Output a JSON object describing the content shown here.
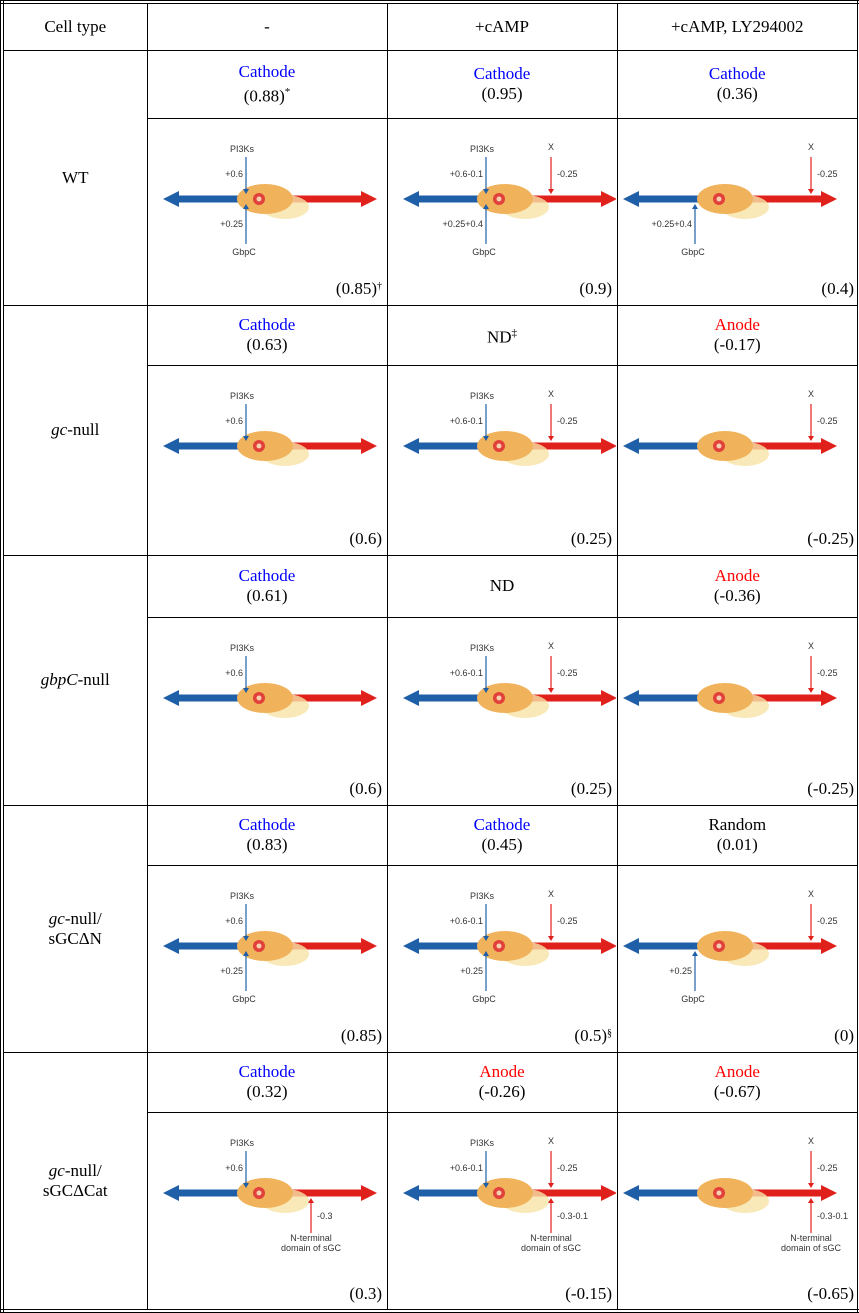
{
  "header": [
    "Cell type",
    "-",
    "+cAMP",
    "+cAMP, LY294002"
  ],
  "rows": [
    {
      "cell_type": {
        "lines": [
          [
            {
              "text": "WT",
              "italic": false
            }
          ]
        ]
      },
      "results": [
        {
          "direction": "Cathode",
          "color": "#0000ff",
          "value": "(0.88)",
          "mark": "*"
        },
        {
          "direction": "Cathode",
          "color": "#0000ff",
          "value": "(0.95)"
        },
        {
          "direction": "Cathode",
          "color": "#0000ff",
          "value": "(0.36)"
        }
      ],
      "diagrams": [
        {
          "pi3k": {
            "label": "PI3Ks",
            "value": "+0.6"
          },
          "gbpc": {
            "label": "GbpC",
            "value": "+0.25"
          },
          "score": "(0.85)",
          "score_mark": "†"
        },
        {
          "pi3k": {
            "label": "PI3Ks",
            "value": "+0.6-0.1"
          },
          "gbpc": {
            "label": "GbpC",
            "value": "+0.25+0.4"
          },
          "x": {
            "label": "X",
            "value": "-0.25"
          },
          "score": "(0.9)"
        },
        {
          "gbpc": {
            "label": "GbpC",
            "value": "+0.25+0.4"
          },
          "x": {
            "label": "X",
            "value": "-0.25"
          },
          "score": "(0.4)"
        }
      ]
    },
    {
      "cell_type": {
        "lines": [
          [
            {
              "text": "gc",
              "italic": true
            },
            {
              "text": "-null",
              "italic": false
            }
          ]
        ]
      },
      "results": [
        {
          "direction": "Cathode",
          "color": "#0000ff",
          "value": "(0.63)"
        },
        {
          "direction": "ND",
          "color": "#000000",
          "direction_mark": "‡"
        },
        {
          "direction": "Anode",
          "color": "#ff0000",
          "value": "(-0.17)"
        }
      ],
      "diagrams": [
        {
          "pi3k": {
            "label": "PI3Ks",
            "value": "+0.6"
          },
          "score": "(0.6)"
        },
        {
          "pi3k": {
            "label": "PI3Ks",
            "value": "+0.6-0.1"
          },
          "x": {
            "label": "X",
            "value": "-0.25"
          },
          "score": "(0.25)"
        },
        {
          "x": {
            "label": "X",
            "value": "-0.25"
          },
          "score": "(-0.25)"
        }
      ]
    },
    {
      "cell_type": {
        "lines": [
          [
            {
              "text": "gbpC",
              "italic": true
            },
            {
              "text": "-null",
              "italic": false
            }
          ]
        ]
      },
      "results": [
        {
          "direction": "Cathode",
          "color": "#0000ff",
          "value": "(0.61)"
        },
        {
          "direction": "ND",
          "color": "#000000"
        },
        {
          "direction": "Anode",
          "color": "#ff0000",
          "value": "(-0.36)"
        }
      ],
      "diagrams": [
        {
          "pi3k": {
            "label": "PI3Ks",
            "value": "+0.6"
          },
          "score": "(0.6)"
        },
        {
          "pi3k": {
            "label": "PI3Ks",
            "value": "+0.6-0.1"
          },
          "x": {
            "label": "X",
            "value": "-0.25"
          },
          "score": "(0.25)"
        },
        {
          "x": {
            "label": "X",
            "value": "-0.25"
          },
          "score": "(-0.25)"
        }
      ]
    },
    {
      "cell_type": {
        "lines": [
          [
            {
              "text": "gc",
              "italic": true
            },
            {
              "text": "-null/",
              "italic": false
            }
          ],
          [
            {
              "text": "sGCΔN",
              "italic": false
            }
          ]
        ]
      },
      "results": [
        {
          "direction": "Cathode",
          "color": "#0000ff",
          "value": "(0.83)"
        },
        {
          "direction": "Cathode",
          "color": "#0000ff",
          "value": "(0.45)"
        },
        {
          "direction": "Random",
          "color": "#000000",
          "value": "(0.01)"
        }
      ],
      "diagrams": [
        {
          "pi3k": {
            "label": "PI3Ks",
            "value": "+0.6"
          },
          "gbpc": {
            "label": "GbpC",
            "value": "+0.25"
          },
          "score": "(0.85)"
        },
        {
          "pi3k": {
            "label": "PI3Ks",
            "value": "+0.6-0.1"
          },
          "gbpc": {
            "label": "GbpC",
            "value": "+0.25"
          },
          "x": {
            "label": "X",
            "value": "-0.25"
          },
          "score": "(0.5)",
          "score_mark": "§"
        },
        {
          "gbpc": {
            "label": "GbpC",
            "value": "+0.25"
          },
          "x": {
            "label": "X",
            "value": "-0.25"
          },
          "score": "(0)"
        }
      ]
    },
    {
      "cell_type": {
        "lines": [
          [
            {
              "text": "gc",
              "italic": true
            },
            {
              "text": "-null/",
              "italic": false
            }
          ],
          [
            {
              "text": "sGCΔCat",
              "italic": false
            }
          ]
        ]
      },
      "results": [
        {
          "direction": "Cathode",
          "color": "#0000ff",
          "value": "(0.32)"
        },
        {
          "direction": "Anode",
          "color": "#ff0000",
          "value": "(-0.26)"
        },
        {
          "direction": "Anode",
          "color": "#ff0000",
          "value": "(-0.67)"
        }
      ],
      "diagrams": [
        {
          "pi3k": {
            "label": "PI3Ks",
            "value": "+0.6"
          },
          "nterm": {
            "label": [
              "N-terminal",
              "domain of sGC"
            ],
            "value": "-0.3"
          },
          "score": "(0.3)"
        },
        {
          "pi3k": {
            "label": "PI3Ks",
            "value": "+0.6-0.1"
          },
          "x": {
            "label": "X",
            "value": "-0.25"
          },
          "nterm": {
            "label": [
              "N-terminal",
              "domain of sGC"
            ],
            "value": "-0.3-0.1"
          },
          "score": "(-0.15)"
        },
        {
          "x": {
            "label": "X",
            "value": "-0.25"
          },
          "nterm": {
            "label": [
              "N-terminal",
              "domain of sGC"
            ],
            "value": "-0.3-0.1"
          },
          "score": "(-0.65)"
        }
      ]
    }
  ]
}
